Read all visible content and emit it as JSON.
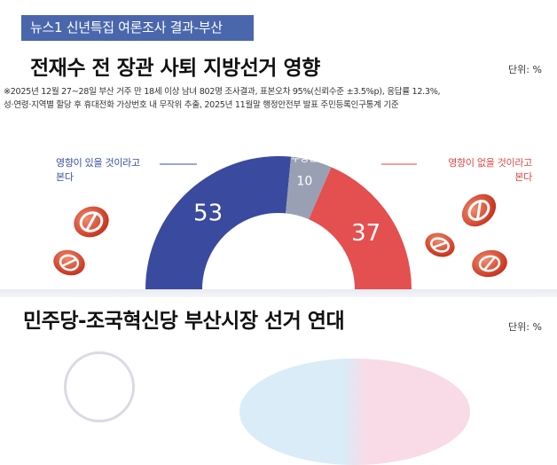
{
  "header": {
    "tag": "뉴스1 신년특집 여론조사 결과-부산"
  },
  "section1": {
    "title": "전재수 전 장관 사퇴 지방선거 영향",
    "unit": "단위: %",
    "notes": [
      "※2025년 12월 27~28일 부산 거주 만 18세 이상 남녀 802명 조사결과, 표본오차 95%(신뢰수준 ±3.5%p), 응답률 12.3%,",
      "성·연령·지역별 할당 후 휴대전화 가상번호 내 무작위 추출,  2025년 11월말 행정안전부 발표 주민등록인구통계 기준"
    ]
  },
  "chart_data": {
    "type": "pie",
    "shape": "half-donut",
    "slices": [
      {
        "label_lines": [
          "영향이 있을 것이라고",
          "본다"
        ],
        "value": 53,
        "color": "#3a4a9e"
      },
      {
        "label_lines": [
          "모름·",
          "무응답"
        ],
        "value": 10,
        "color": "#9aa0b4"
      },
      {
        "label_lines": [
          "영향이 없을 것이라고",
          "본다"
        ],
        "value": 37,
        "color": "#e44f4f"
      }
    ]
  },
  "section2": {
    "title": "민주당-조국혁신당 부산시장 선거 연대",
    "unit": "단위: %"
  },
  "colors": {
    "header_bg": "#4a67ad",
    "leader_left": "#3b4da0",
    "leader_right": "#e04646"
  },
  "icons": [
    "no-vote-stamp-icon"
  ]
}
